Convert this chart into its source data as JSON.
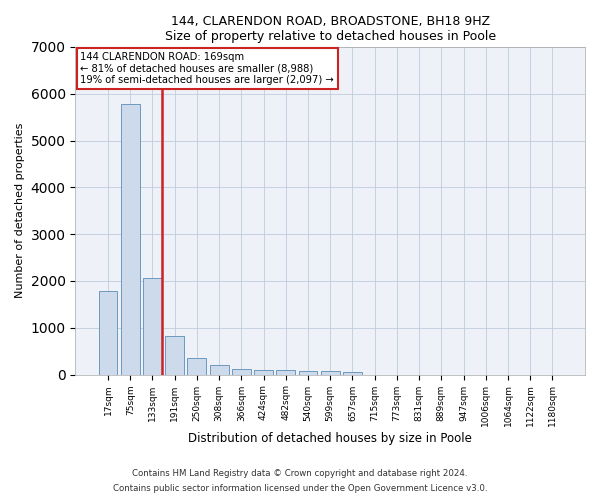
{
  "title": "144, CLARENDON ROAD, BROADSTONE, BH18 9HZ",
  "subtitle": "Size of property relative to detached houses in Poole",
  "xlabel": "Distribution of detached houses by size in Poole",
  "ylabel": "Number of detached properties",
  "categories": [
    "17sqm",
    "75sqm",
    "133sqm",
    "191sqm",
    "250sqm",
    "308sqm",
    "366sqm",
    "424sqm",
    "482sqm",
    "540sqm",
    "599sqm",
    "657sqm",
    "715sqm",
    "773sqm",
    "831sqm",
    "889sqm",
    "947sqm",
    "1006sqm",
    "1064sqm",
    "1122sqm",
    "1180sqm"
  ],
  "values": [
    1780,
    5780,
    2060,
    820,
    360,
    200,
    115,
    100,
    95,
    85,
    70,
    55,
    0,
    0,
    0,
    0,
    0,
    0,
    0,
    0,
    0
  ],
  "bar_color": "#ccdaeb",
  "bar_edge_color": "#5b8db8",
  "highlight_color": "#cc2222",
  "subject_label": "144 CLARENDON ROAD: 169sqm",
  "annotation_line1": "← 81% of detached houses are smaller (8,988)",
  "annotation_line2": "19% of semi-detached houses are larger (2,097) →",
  "ylim": [
    0,
    7000
  ],
  "yticks": [
    0,
    1000,
    2000,
    3000,
    4000,
    5000,
    6000,
    7000
  ],
  "vline_x": 2,
  "footer_line1": "Contains HM Land Registry data © Crown copyright and database right 2024.",
  "footer_line2": "Contains public sector information licensed under the Open Government Licence v3.0.",
  "plot_bg_color": "#eef2f8"
}
